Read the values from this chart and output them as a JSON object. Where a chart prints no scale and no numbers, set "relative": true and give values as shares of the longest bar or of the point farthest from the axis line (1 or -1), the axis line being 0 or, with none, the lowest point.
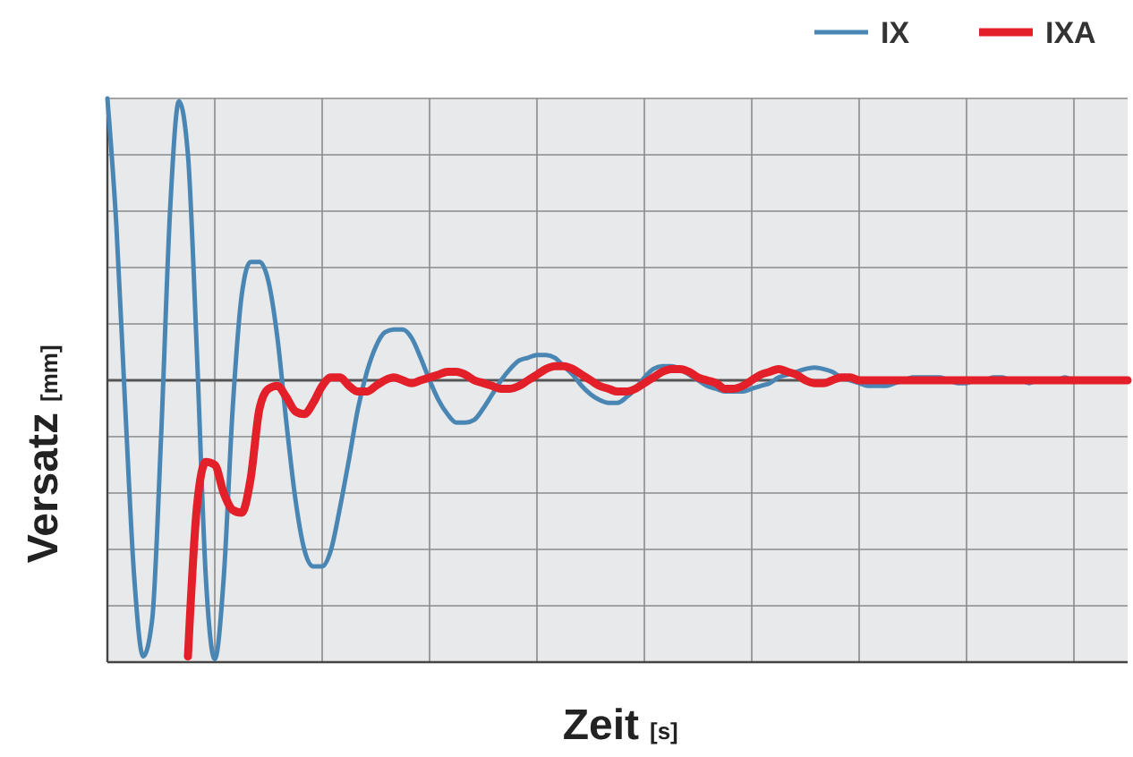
{
  "chart_data": {
    "type": "line",
    "relative": true,
    "xlabel": "Zeit [s]",
    "ylabel": "Versatz [mm]",
    "grid": true,
    "legend": "top right",
    "marker": "none",
    "line_style": "solid",
    "categories": [
      null,
      null,
      null,
      null,
      null,
      null,
      null,
      null,
      null,
      null,
      null,
      null,
      null,
      null,
      null,
      null,
      null,
      null,
      null,
      null,
      null,
      null,
      null,
      null,
      null,
      null,
      null,
      null,
      null,
      null,
      null,
      null,
      null,
      null,
      null,
      null,
      null,
      null,
      null,
      null,
      null,
      null,
      null,
      null,
      null,
      null,
      null,
      null,
      null,
      null,
      null,
      null,
      null,
      null,
      null,
      null,
      null,
      null,
      null,
      null,
      null,
      null,
      null,
      null,
      null,
      null,
      null,
      null,
      null,
      null,
      null,
      null,
      null,
      null,
      null,
      null,
      null,
      null,
      null,
      null,
      null,
      null,
      null,
      null,
      null,
      null,
      null,
      null,
      null,
      null,
      null,
      null,
      null,
      null,
      null,
      null,
      null,
      null,
      null,
      null,
      null,
      null,
      null,
      null,
      null,
      null,
      null,
      null,
      null,
      null,
      null,
      null,
      null,
      null,
      null
    ],
    "series": [
      {
        "name": "IX",
        "color": "#4a86b4",
        "values": [
          1.0,
          0.55,
          -0.1,
          -0.7,
          -0.98,
          -0.85,
          -0.2,
          0.6,
          0.99,
          0.8,
          0.1,
          -0.7,
          -0.99,
          -0.7,
          -0.1,
          0.3,
          0.42,
          0.42,
          0.35,
          0.15,
          -0.15,
          -0.42,
          -0.6,
          -0.66,
          -0.66,
          -0.6,
          -0.45,
          -0.28,
          -0.1,
          0.03,
          0.12,
          0.17,
          0.18,
          0.18,
          0.15,
          0.08,
          0.0,
          -0.07,
          -0.12,
          -0.15,
          -0.15,
          -0.14,
          -0.1,
          -0.05,
          0.0,
          0.04,
          0.07,
          0.08,
          0.09,
          0.09,
          0.08,
          0.05,
          0.02,
          -0.02,
          -0.05,
          -0.07,
          -0.08,
          -0.08,
          -0.06,
          -0.03,
          0.01,
          0.04,
          0.05,
          0.05,
          0.04,
          0.02,
          0.0,
          -0.02,
          -0.03,
          -0.04,
          -0.04,
          -0.04,
          -0.03,
          -0.02,
          -0.01,
          0.01,
          0.02,
          0.03,
          0.04,
          0.045,
          0.04,
          0.03,
          0.01,
          0.0,
          -0.01,
          -0.02,
          -0.02,
          -0.02,
          -0.01,
          0.0,
          0.01,
          0.01,
          0.01,
          0.01,
          0.0,
          -0.01,
          -0.01,
          0.0,
          0.0,
          0.01,
          0.01,
          0.0,
          0.0,
          -0.01,
          0.0,
          0.0,
          0.0,
          0.01,
          0.0,
          0.0,
          null,
          null,
          null,
          null,
          null
        ]
      },
      {
        "name": "IXA",
        "color": "#e3202a",
        "values": [
          null,
          null,
          null,
          null,
          null,
          null,
          null,
          null,
          null,
          -0.98,
          -0.45,
          -0.29,
          -0.3,
          -0.4,
          -0.46,
          -0.47,
          -0.35,
          -0.1,
          -0.03,
          -0.02,
          -0.06,
          -0.11,
          -0.12,
          -0.08,
          -0.02,
          0.01,
          0.01,
          -0.02,
          -0.04,
          -0.04,
          -0.02,
          0.0,
          0.01,
          0.0,
          -0.01,
          0.0,
          0.01,
          0.02,
          0.03,
          0.03,
          0.02,
          0.0,
          -0.01,
          -0.02,
          -0.03,
          -0.03,
          -0.02,
          0.0,
          0.02,
          0.04,
          0.05,
          0.05,
          0.04,
          0.02,
          0.0,
          -0.02,
          -0.03,
          -0.04,
          -0.04,
          -0.03,
          -0.01,
          0.01,
          0.03,
          0.04,
          0.04,
          0.03,
          0.01,
          0.0,
          -0.01,
          -0.03,
          -0.03,
          -0.02,
          0.0,
          0.02,
          0.03,
          0.04,
          0.03,
          0.02,
          0.0,
          -0.01,
          -0.01,
          0.0,
          0.01,
          0.01,
          0.0,
          0.0,
          0.0,
          0.0,
          0.0,
          0.0,
          0.0,
          0.0,
          0.0,
          0.0,
          0.0,
          0.0,
          0.0,
          0.0,
          0.0,
          0.0,
          0.0,
          0.0,
          0.0,
          0.0,
          0.0,
          0.0,
          0.0,
          0.0,
          0.0,
          0.0,
          0.0,
          0.0,
          0.0,
          0.0,
          0.0
        ]
      }
    ]
  }
}
